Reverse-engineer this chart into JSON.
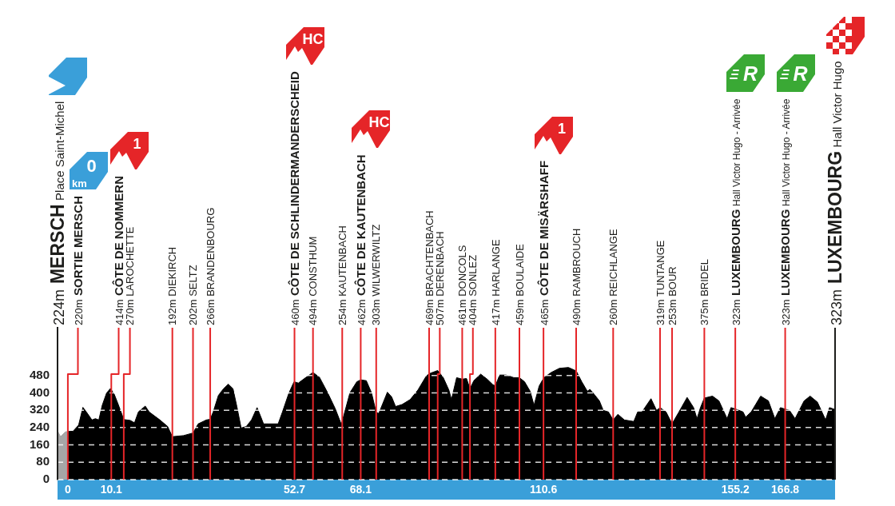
{
  "chart_data": {
    "type": "area",
    "series": [
      {
        "color": "#a6a6a6",
        "x": [
          -2.4,
          -1.7,
          -0.6,
          0
        ],
        "values": [
          224,
          198,
          220,
          222
        ]
      },
      {
        "color": "#000000",
        "x": [
          0,
          1.2,
          2.5,
          3.5,
          4.3,
          5.6,
          6.4,
          7.2,
          8.0,
          9.0,
          9.9,
          10.8,
          11.9,
          13.0,
          14.5,
          15.5,
          16.4,
          18.0,
          18.9,
          21.4,
          23.2,
          24.3,
          26.9,
          29.1,
          30.3,
          32.2,
          33.1,
          33.8,
          35.0,
          36.2,
          37.3,
          38.4,
          39.3,
          40.3,
          41.5,
          42.7,
          44.0,
          44.9,
          45.5,
          46.8,
          48.9,
          49.9,
          51.4,
          52.6,
          53.6,
          54.8,
          57.0,
          58.5,
          60.4,
          62.2,
          63.6,
          65.6,
          67.2,
          68.1,
          69.4,
          70.6,
          71.7,
          72.3,
          74.3,
          75.3,
          76.2,
          77.7,
          79.6,
          81.4,
          83.3,
          84.0,
          86.0,
          87.3,
          88.6,
          89.2,
          90.4,
          91.7,
          92.7,
          93.5,
          94.4,
          96.0,
          97.5,
          98.8,
          99.4,
          100.4,
          101.9,
          103.7,
          105.0,
          106.2,
          107.5,
          108.4,
          109.6,
          110.7,
          112.4,
          114.3,
          116.4,
          118.2,
          119.5,
          120.8,
          121.4,
          122.6,
          123.6,
          124.5,
          125.7,
          126.8,
          127.9,
          129.4,
          131.6,
          132.5,
          133.5,
          135.6,
          136.9,
          137.7,
          139.1,
          140.5,
          142.1,
          144.0,
          145.5,
          146.3,
          147.1,
          148.0,
          149.9,
          151.4,
          153.3,
          154.2,
          155.3,
          157.0,
          157.6,
          158.9,
          161.1,
          162.9,
          164.4,
          165.7,
          166.8,
          167.8,
          169.1,
          171.2,
          172.6,
          174.3,
          176.2,
          177.1,
          178.4
        ],
        "values": [
          222,
          223,
          251,
          333,
          312,
          275,
          281,
          275,
          343,
          399,
          420,
          393,
          337,
          277,
          273,
          262,
          312,
          339,
          312,
          275,
          245,
          198,
          203,
          215,
          257,
          275,
          278,
          312,
          388,
          419,
          440,
          419,
          337,
          238,
          245,
          275,
          332,
          288,
          257,
          257,
          257,
          312,
          399,
          451,
          445,
          463,
          494,
          472,
          401,
          326,
          254,
          401,
          451,
          460,
          456,
          401,
          310,
          305,
          403,
          381,
          337,
          346,
          369,
          413,
          476,
          488,
          503,
          470,
          413,
          369,
          470,
          463,
          466,
          419,
          456,
          486,
          463,
          438,
          432,
          482,
          482,
          470,
          470,
          451,
          407,
          343,
          432,
          470,
          494,
          513,
          517,
          501,
          451,
          407,
          416,
          388,
          363,
          319,
          312,
          275,
          301,
          275,
          268,
          312,
          312,
          373,
          319,
          332,
          312,
          257,
          312,
          379,
          332,
          281,
          332,
          376,
          385,
          363,
          281,
          332,
          325,
          312,
          288,
          312,
          385,
          363,
          281,
          332,
          325,
          319,
          281,
          363,
          385,
          357,
          275,
          332,
          323
        ]
      }
    ],
    "xlim": [
      -2.4,
      178.4
    ],
    "xticks": [
      0,
      10.1,
      52.7,
      68.1,
      110.6,
      155.2,
      166.8
    ],
    "ylim": [
      0,
      700
    ],
    "yticks": [
      0,
      80,
      160,
      240,
      320,
      400,
      480
    ],
    "grid": "y",
    "ref_lines": [
      {
        "axis": "x",
        "value": -2.4,
        "label": "224m MERSCH Place Saint-Michel",
        "color": "#1d1d1b"
      },
      {
        "axis": "x",
        "value": 0,
        "label": "220m SORTIE MERSCH",
        "color": "#e52528"
      },
      {
        "axis": "x",
        "value": 10.1,
        "label": "414m CÔTE DE NOMMERN",
        "color": "#e52528"
      },
      {
        "axis": "x",
        "value": 13.0,
        "label": "270m LAROCHETTE",
        "color": "#e52528"
      },
      {
        "axis": "x",
        "value": 24.3,
        "label": "192m DIEKIRCH",
        "color": "#e52528"
      },
      {
        "axis": "x",
        "value": 29.1,
        "label": "202m SELTZ",
        "color": "#e52528"
      },
      {
        "axis": "x",
        "value": 33.1,
        "label": "266m BRANDENBOURG",
        "color": "#e52528"
      },
      {
        "axis": "x",
        "value": 52.7,
        "label": "460m CÔTE DE SCHLINDERMANDERSCHEID",
        "color": "#e52528"
      },
      {
        "axis": "x",
        "value": 57.0,
        "label": "494m CONSTHUM",
        "color": "#e52528"
      },
      {
        "axis": "x",
        "value": 63.8,
        "label": "254m KAUTENBACH",
        "color": "#e52528"
      },
      {
        "axis": "x",
        "value": 68.1,
        "label": "462m CÔTE DE KAUTENBACH",
        "color": "#e52528"
      },
      {
        "axis": "x",
        "value": 71.7,
        "label": "303m WILWERWILTZ",
        "color": "#e52528"
      },
      {
        "axis": "x",
        "value": 84.0,
        "label": "469m BRACHTENBACH",
        "color": "#e52528"
      },
      {
        "axis": "x",
        "value": 86.0,
        "label": "507m DERENBACH",
        "color": "#e52528"
      },
      {
        "axis": "x",
        "value": 91.7,
        "label": "461m DONCOLS",
        "color": "#e52528"
      },
      {
        "axis": "x",
        "value": 93.5,
        "label": "404m SONLEZ",
        "color": "#e52528"
      },
      {
        "axis": "x",
        "value": 99.4,
        "label": "417m HARLANGE",
        "color": "#e52528"
      },
      {
        "axis": "x",
        "value": 105.0,
        "label": "459m BOULAIDE",
        "color": "#e52528"
      },
      {
        "axis": "x",
        "value": 110.6,
        "label": "465m CÔTE DE MISÄRSHAFF",
        "color": "#e52528"
      },
      {
        "axis": "x",
        "value": 118.2,
        "label": "490m RAMBROUCH",
        "color": "#e52528"
      },
      {
        "axis": "x",
        "value": 126.8,
        "label": "260m REICHLANGE",
        "color": "#e52528"
      },
      {
        "axis": "x",
        "value": 137.7,
        "label": "319m TUNTANGE",
        "color": "#e52528"
      },
      {
        "axis": "x",
        "value": 140.5,
        "label": "253m BOUR",
        "color": "#e52528"
      },
      {
        "axis": "x",
        "value": 148.0,
        "label": "375m BRIDEL",
        "color": "#e52528"
      },
      {
        "axis": "x",
        "value": 155.2,
        "label": "323m LUXEMBOURG Hall Victor Hugo - Arrivée",
        "color": "#e52528"
      },
      {
        "axis": "x",
        "value": 166.8,
        "label": "323m LUXEMBOURG Hall Victor Hugo - Arrivée",
        "color": "#e52528"
      },
      {
        "axis": "x",
        "value": 178.4,
        "label": "323m LUXEMBOURG Hall Victor Hugo",
        "color": "#1d1d1b"
      }
    ],
    "annotations": [
      "0 km",
      "1",
      "HC",
      "HC",
      "1",
      "R",
      "R"
    ]
  }
}
